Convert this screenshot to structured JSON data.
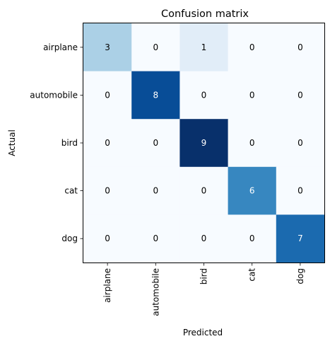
{
  "chart_data": {
    "type": "heatmap",
    "title": "Confusion matrix",
    "xlabel": "Predicted",
    "ylabel": "Actual",
    "x_categories": [
      "airplane",
      "automobile",
      "bird",
      "cat",
      "dog"
    ],
    "y_categories": [
      "airplane",
      "automobile",
      "bird",
      "cat",
      "dog"
    ],
    "values": [
      [
        3,
        0,
        1,
        0,
        0
      ],
      [
        0,
        8,
        0,
        0,
        0
      ],
      [
        0,
        0,
        9,
        0,
        0
      ],
      [
        0,
        0,
        0,
        6,
        0
      ],
      [
        0,
        0,
        0,
        0,
        7
      ]
    ],
    "colormap": "Blues",
    "vmin": 0,
    "vmax": 9,
    "colors": {
      "cmap_low": "#f7fbff",
      "cmap_high": "#08306b",
      "text_dark": "#000000",
      "text_light": "#ffffff"
    }
  }
}
